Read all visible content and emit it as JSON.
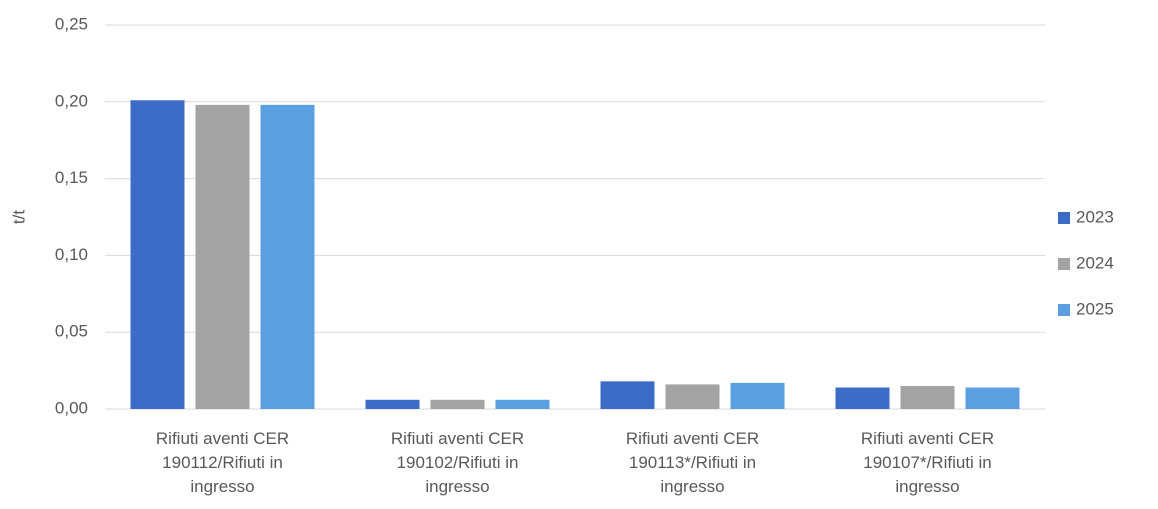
{
  "chart_data": {
    "type": "bar",
    "y_label": "t/t",
    "categories": [
      "Rifiuti aventi CER 190112/Rifiuti in ingresso",
      "Rifiuti aventi CER 190102/Rifiuti in ingresso",
      "Rifiuti aventi CER 190113*/Rifiuti in ingresso",
      "Rifiuti aventi CER 190107*/Rifiuti in ingresso"
    ],
    "series": [
      {
        "name": "2023",
        "color": "#3d6cc8",
        "values": [
          0.201,
          0.006,
          0.018,
          0.014
        ]
      },
      {
        "name": "2024",
        "color": "#a3a3a3",
        "values": [
          0.198,
          0.006,
          0.016,
          0.015
        ]
      },
      {
        "name": "2025",
        "color": "#5b9fe0",
        "values": [
          0.198,
          0.006,
          0.017,
          0.014
        ]
      }
    ],
    "ylim": [
      0,
      0.25
    ],
    "yticks": [
      {
        "value": 0,
        "label": "0,00"
      },
      {
        "value": 0.05,
        "label": "0,05"
      },
      {
        "value": 0.1,
        "label": "0,10"
      },
      {
        "value": 0.15,
        "label": "0,15"
      },
      {
        "value": 0.2,
        "label": "0,20"
      },
      {
        "value": 0.25,
        "label": "0,25"
      }
    ],
    "grid": true,
    "legend": "right"
  }
}
